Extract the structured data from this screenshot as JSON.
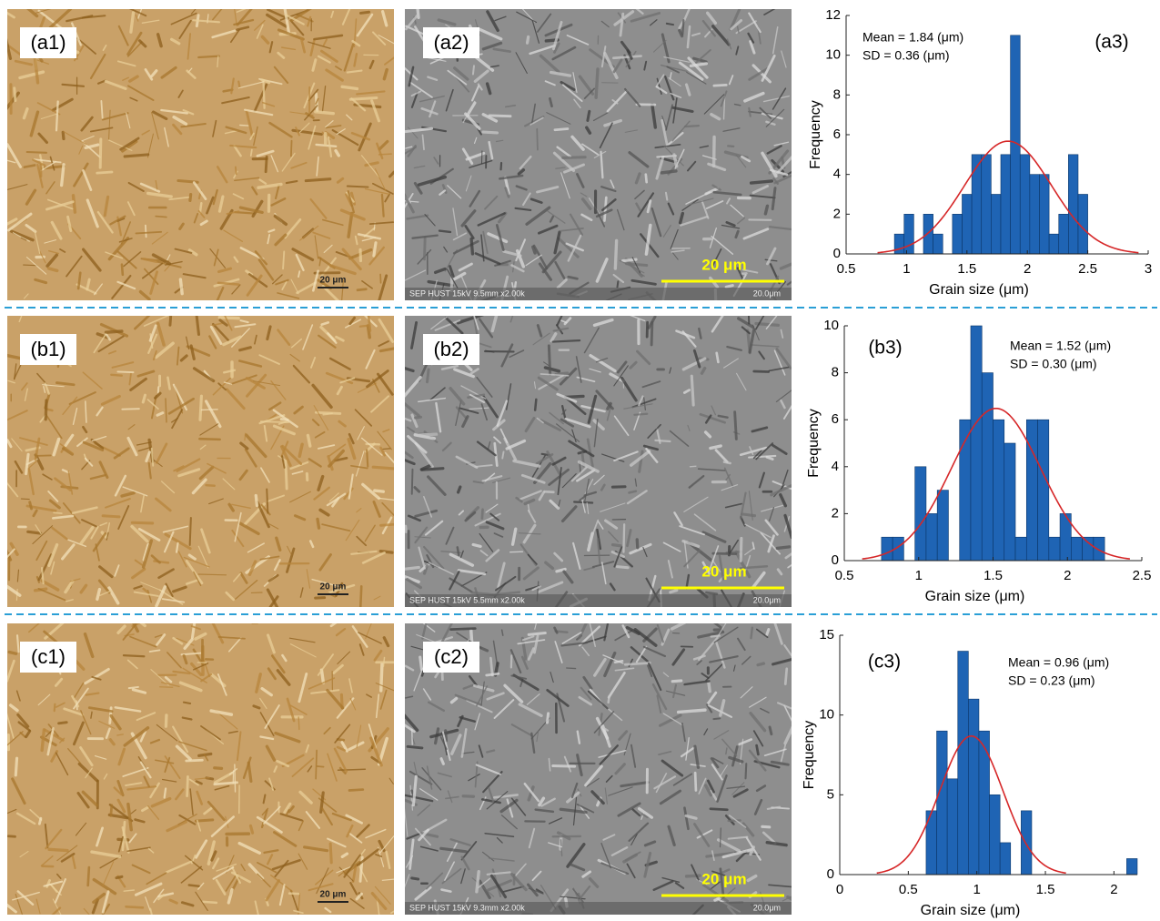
{
  "micrographs": [
    {
      "optical_label": "(a1)",
      "optical_scale": "20 μm",
      "sem_label": "(a2)",
      "sem_scale": "20 μm",
      "sem_footer": "SEP HUST 15kV 9.5mm x2.00k",
      "sem_footer_scale": "20.0μm"
    },
    {
      "optical_label": "(b1)",
      "optical_scale": "20 μm",
      "sem_label": "(b2)",
      "sem_scale": "20 μm",
      "sem_footer": "SEP HUST 15kV 5.5mm x2.00k",
      "sem_footer_scale": "20.0μm"
    },
    {
      "optical_label": "(c1)",
      "optical_scale": "20 μm",
      "sem_label": "(c2)",
      "sem_scale": "20 μm",
      "sem_footer": "SEP HUST 15kV 9.3mm x2.00k",
      "sem_footer_scale": "20.0μm"
    }
  ],
  "chart_data": [
    {
      "type": "histogram",
      "panel_label": "(a3)",
      "annotations": [
        "Mean = 1.84 (μm)",
        "SD = 0.36 (μm)"
      ],
      "x_label": "Grain size (μm)",
      "y_label": "Frequency",
      "bins": [
        0.9,
        0.98,
        1.06,
        1.14,
        1.22,
        1.3,
        1.38,
        1.46,
        1.54,
        1.62,
        1.7,
        1.78,
        1.86,
        1.94,
        2.02,
        2.1,
        2.18,
        2.26,
        2.34,
        2.42,
        2.5
      ],
      "values": [
        1,
        2,
        0,
        2,
        1,
        0,
        2,
        3,
        5,
        5,
        3,
        5,
        11,
        5,
        4,
        4,
        1,
        2,
        5,
        3
      ],
      "color": "#1f64b4",
      "xlim": [
        0.5,
        3
      ],
      "xticks": [
        0.5,
        1,
        1.5,
        2,
        2.5,
        3
      ],
      "ylim": [
        0,
        12
      ],
      "yticks": [
        0,
        2,
        4,
        6,
        8,
        10,
        12
      ],
      "fit": {
        "type": "normal",
        "mean": 1.84,
        "sd": 0.36,
        "color": "#d62728"
      }
    },
    {
      "type": "histogram",
      "panel_label": "(b3)",
      "annotations": [
        "Mean = 1.52 (μm)",
        "SD = 0.30 (μm)"
      ],
      "x_label": "Grain size (μm)",
      "y_label": "Frequency",
      "bins": [
        0.75,
        0.825,
        0.9,
        0.975,
        1.05,
        1.125,
        1.2,
        1.275,
        1.35,
        1.425,
        1.5,
        1.575,
        1.65,
        1.725,
        1.8,
        1.875,
        1.95,
        2.025,
        2.1,
        2.175,
        2.25
      ],
      "values": [
        1,
        1,
        0,
        4,
        2,
        3,
        0,
        6,
        10,
        8,
        6,
        5,
        1,
        6,
        6,
        1,
        2,
        1,
        1,
        1
      ],
      "color": "#1f64b4",
      "xlim": [
        0.5,
        2.5
      ],
      "xticks": [
        0.5,
        1,
        1.5,
        2,
        2.5
      ],
      "ylim": [
        0,
        10
      ],
      "yticks": [
        0,
        2,
        4,
        6,
        8,
        10
      ],
      "fit": {
        "type": "normal",
        "mean": 1.52,
        "sd": 0.3,
        "color": "#d62728"
      }
    },
    {
      "type": "histogram",
      "panel_label": "(c3)",
      "annotations": [
        "Mean = 0.96 (μm)",
        "SD = 0.23 (μm)"
      ],
      "x_label": "Grain size (μm)",
      "y_label": "Frequency",
      "bins": [
        0.63,
        0.707,
        0.784,
        0.861,
        0.938,
        1.015,
        1.092,
        1.169,
        1.246,
        1.323,
        1.4,
        1.477,
        1.554,
        1.631,
        1.708,
        1.785,
        1.862,
        1.939,
        2.016,
        2.093,
        2.17
      ],
      "values": [
        4,
        9,
        6,
        14,
        11,
        9,
        5,
        2,
        0,
        4,
        0,
        0,
        0,
        0,
        0,
        0,
        0,
        0,
        0,
        1
      ],
      "color": "#1f64b4",
      "xlim": [
        0,
        2.17
      ],
      "xticks": [
        0,
        0.5,
        1,
        1.5,
        2
      ],
      "ylim": [
        0,
        15
      ],
      "yticks": [
        0,
        5,
        10,
        15
      ],
      "fit": {
        "type": "normal",
        "mean": 0.96,
        "sd": 0.23,
        "color": "#d62728"
      }
    }
  ]
}
